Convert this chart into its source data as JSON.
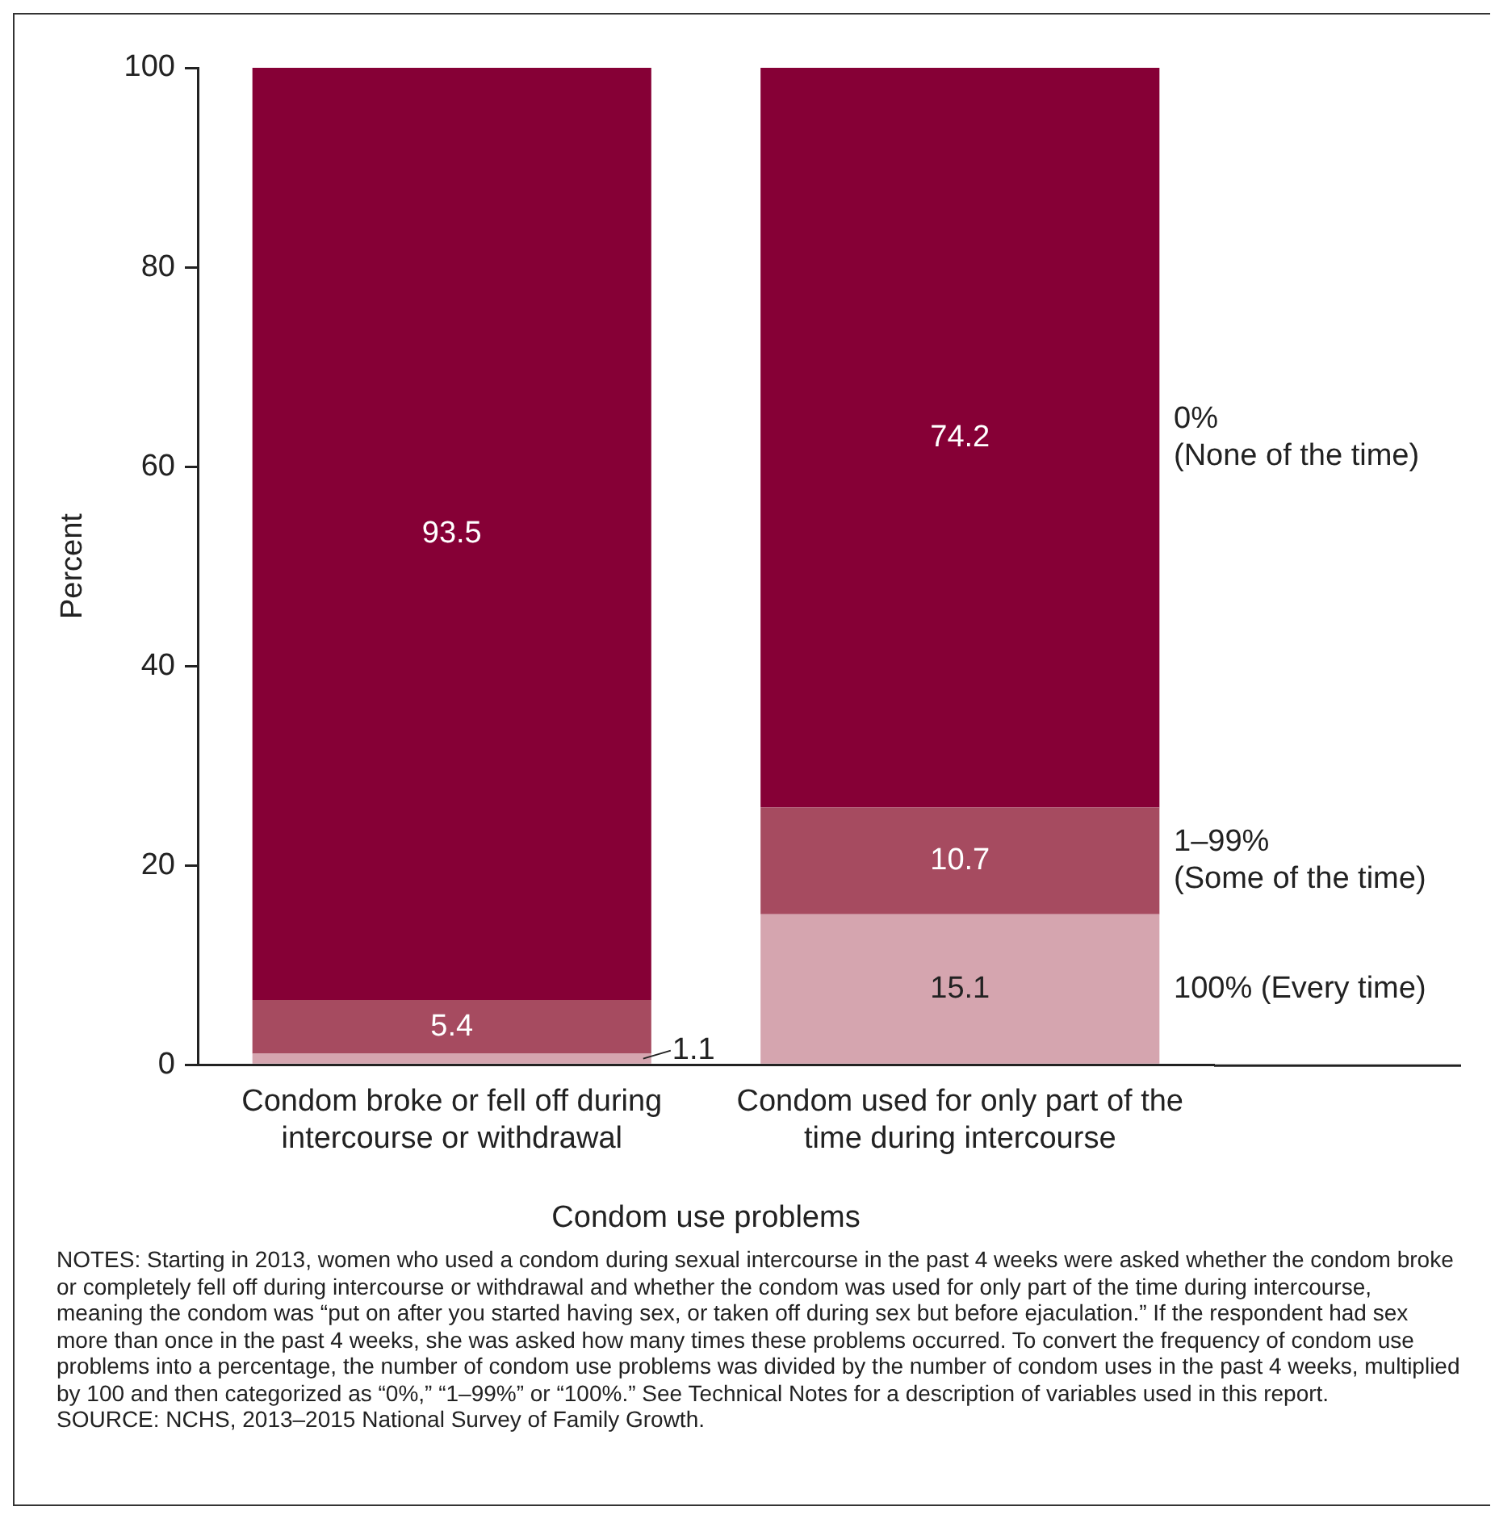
{
  "chart_data": {
    "type": "bar",
    "stacked": true,
    "xlabel": "Condom use problems",
    "ylabel": "Percent",
    "categories": [
      "Condom broke or fell off during intercourse or withdrawal",
      "Condom used for only part of the time during intercourse"
    ],
    "series": [
      {
        "name": "100% (Every time)",
        "color": "#d5a5af",
        "values": [
          1.1,
          15.1
        ]
      },
      {
        "name": "1–99%\n(Some of the time)",
        "color": "#a64b60",
        "values": [
          5.4,
          10.7
        ]
      },
      {
        "name": "0%\n(None of the time)",
        "color": "#860036",
        "values": [
          93.5,
          74.2
        ]
      }
    ],
    "ylim": [
      0,
      100
    ],
    "yticks": [
      0,
      20,
      40,
      60,
      80,
      100
    ],
    "grid": false,
    "legend": "right",
    "data_labels": true,
    "annotations": [
      "NOTES: Starting in 2013, women who used a condom during sexual intercourse in the past 4 weeks were asked whether the condom broke or completely fell off during intercourse or withdrawal and whether the condom was used for only part of the time during intercourse, meaning the condom was “put on after you started having sex, or taken off during sex but before ejaculation.” If the respondent had sex more than once in the past 4 weeks, she was asked how many times these problems occurred. To convert the frequency of condom use problems into a percentage, the number of condom use problems was divided by the number of condom uses in the past 4 weeks, multiplied by 100 and then categorized as “0%,” “1–99%” or “100%.” See Technical Notes for a description of variables used in this report.",
      "SOURCE: NCHS, 2013–2015 National Survey of Family Growth."
    ]
  }
}
